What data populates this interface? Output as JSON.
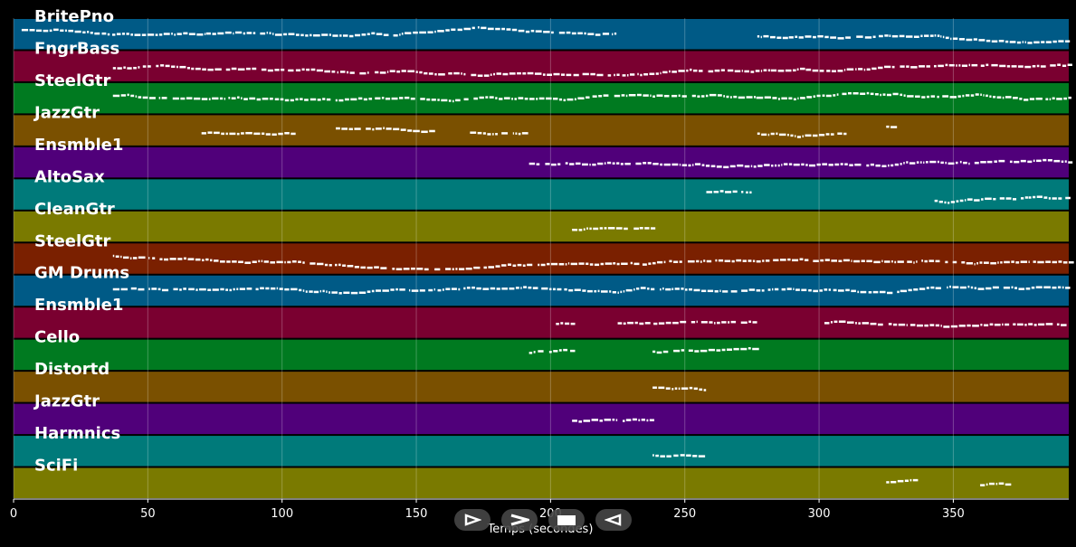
{
  "chart_data": {
    "type": "heatmap",
    "xlabel": "Temps (secondes)",
    "xlim": [
      0,
      393
    ],
    "x_ticks": [
      0,
      50,
      100,
      150,
      200,
      250,
      300,
      350
    ],
    "tracks": [
      {
        "name": "BritePno",
        "color": "#005a86",
        "segments": [
          [
            3,
            225
          ],
          [
            277,
            393
          ]
        ]
      },
      {
        "name": "FngrBass",
        "color": "#7a0030",
        "segments": [
          [
            37,
            393
          ]
        ]
      },
      {
        "name": "SteelGtr",
        "color": "#007a20",
        "segments": [
          [
            37,
            393
          ]
        ]
      },
      {
        "name": "JazzGtr",
        "color": "#7a5000",
        "segments": [
          [
            70,
            105
          ],
          [
            120,
            155
          ],
          [
            170,
            192
          ],
          [
            277,
            310
          ],
          [
            325,
            328
          ]
        ]
      },
      {
        "name": "Ensmble1",
        "color": "#50007a",
        "segments": [
          [
            192,
            393
          ]
        ]
      },
      {
        "name": "AltoSax",
        "color": "#007a7a",
        "segments": [
          [
            258,
            275
          ],
          [
            343,
            393
          ]
        ]
      },
      {
        "name": "CleanGtr",
        "color": "#7a7a00",
        "segments": [
          [
            208,
            238
          ]
        ]
      },
      {
        "name": "SteelGtr",
        "color": "#7a2000",
        "segments": [
          [
            37,
            393
          ]
        ]
      },
      {
        "name": "GM Drums",
        "color": "#005a86",
        "segments": [
          [
            37,
            393
          ]
        ]
      },
      {
        "name": "Ensmble1",
        "color": "#7a0030",
        "segments": [
          [
            202,
            208
          ],
          [
            225,
            277
          ],
          [
            302,
            393
          ]
        ]
      },
      {
        "name": "Cello",
        "color": "#007a20",
        "segments": [
          [
            192,
            208
          ],
          [
            238,
            277
          ]
        ]
      },
      {
        "name": "Distortd",
        "color": "#7a5000",
        "segments": [
          [
            238,
            258
          ]
        ]
      },
      {
        "name": "JazzGtr",
        "color": "#50007a",
        "segments": [
          [
            208,
            238
          ]
        ]
      },
      {
        "name": "Harmnics",
        "color": "#007a7a",
        "segments": [
          [
            238,
            258
          ]
        ]
      },
      {
        "name": "SciFi",
        "color": "#7a7a00",
        "segments": [
          [
            325,
            335
          ],
          [
            360,
            370
          ]
        ]
      }
    ]
  },
  "controls": [
    {
      "name": "play-forward-button",
      "icon": "play-outline-icon"
    },
    {
      "name": "fast-forward-button",
      "icon": "chevron-right-icon"
    },
    {
      "name": "stop-button",
      "icon": "stop-icon"
    },
    {
      "name": "rewind-button",
      "icon": "play-reverse-outline-icon"
    }
  ]
}
